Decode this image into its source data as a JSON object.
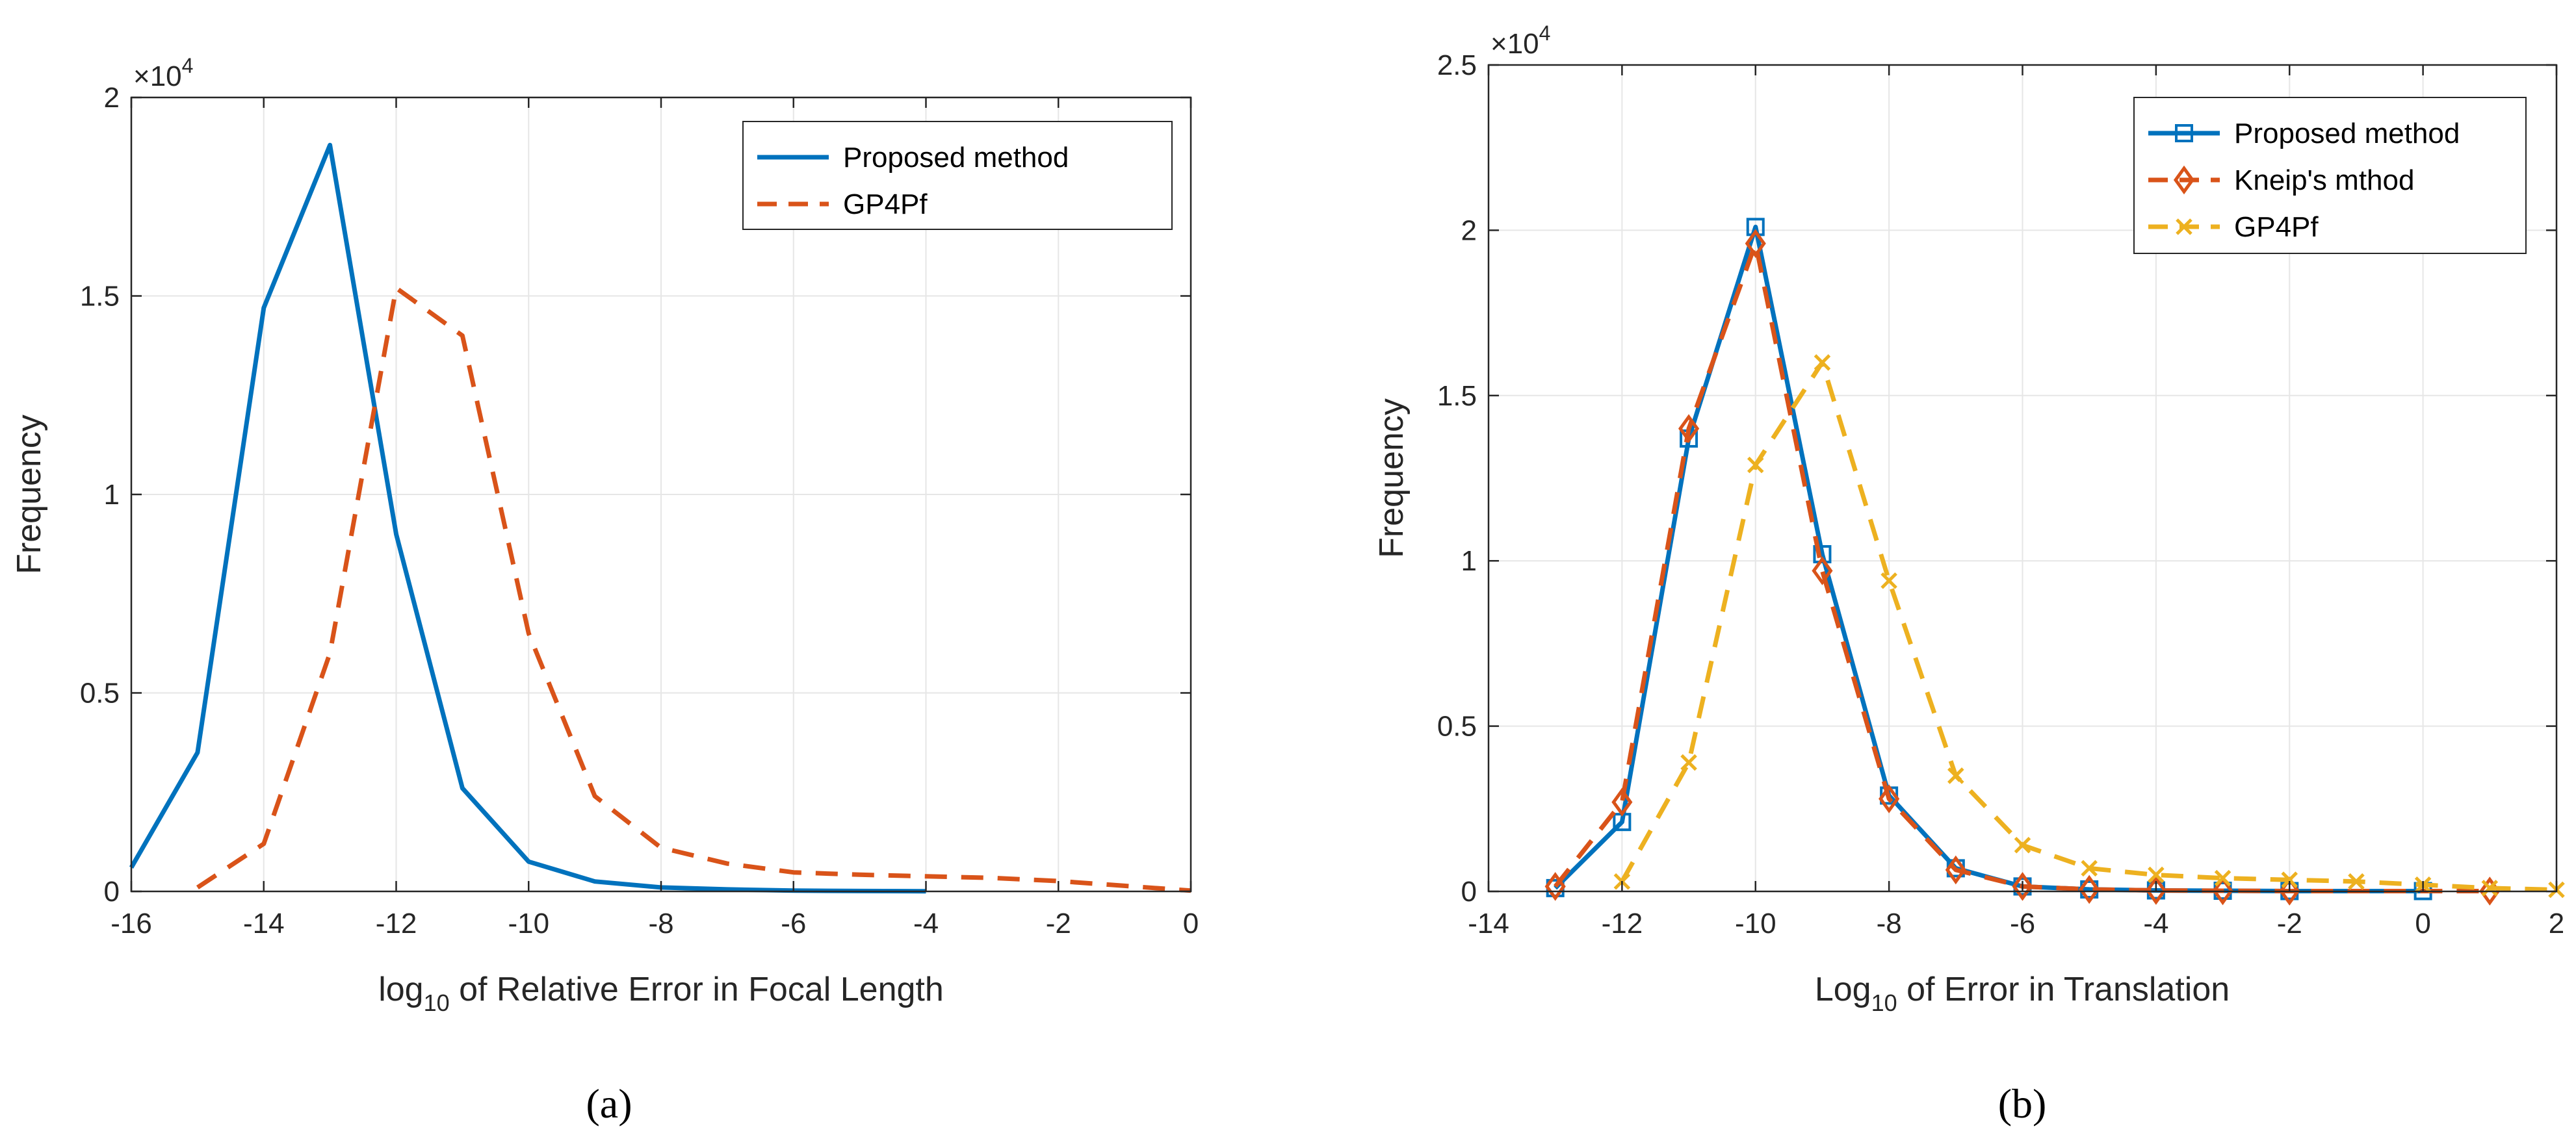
{
  "chart_data": [
    {
      "type": "line",
      "caption": "(a)",
      "xlabel_prefix": "log",
      "xlabel_sub": "10",
      "xlabel_rest": " of Relative Error in Focal Length",
      "ylabel": "Frequency",
      "y_multiplier_base": "×10",
      "y_multiplier_exp": "4",
      "xlim": [
        -16,
        0
      ],
      "ylim": [
        0,
        20000
      ],
      "xticks": [
        -16,
        -14,
        -12,
        -10,
        -8,
        -6,
        -4,
        -2,
        0
      ],
      "xtick_labels": [
        "-16",
        "-14",
        "-12",
        "-10",
        "-8",
        "-6",
        "-4",
        "-2",
        "0"
      ],
      "yticks": [
        0,
        5000,
        10000,
        15000,
        20000
      ],
      "ytick_labels": [
        "0",
        "0.5",
        "1",
        "1.5",
        "2"
      ],
      "grid": true,
      "legend_position": "top-right",
      "series": [
        {
          "name": "Proposed method",
          "color": "#0072BD",
          "style": "solid",
          "marker": "none",
          "x": [
            -16,
            -15,
            -14,
            -13,
            -12,
            -11,
            -10,
            -9,
            -8,
            -7,
            -6,
            -5,
            -4
          ],
          "y": [
            600,
            3500,
            14700,
            18800,
            9000,
            2600,
            750,
            250,
            100,
            50,
            20,
            10,
            5
          ]
        },
        {
          "name": "GP4Pf",
          "color": "#D95319",
          "style": "dashed",
          "marker": "none",
          "x": [
            -15,
            -14,
            -13,
            -12,
            -11,
            -10,
            -9,
            -8,
            -7,
            -6,
            -5,
            -4,
            -3,
            -2,
            -1,
            0
          ],
          "y": [
            100,
            1200,
            6000,
            15200,
            14000,
            6500,
            2400,
            1100,
            700,
            480,
            420,
            380,
            340,
            260,
            140,
            20
          ]
        }
      ]
    },
    {
      "type": "line",
      "caption": "(b)",
      "xlabel_prefix": "Log",
      "xlabel_sub": "10",
      "xlabel_rest": " of Error in Translation",
      "ylabel": "Frequency",
      "y_multiplier_base": "×10",
      "y_multiplier_exp": "4",
      "xlim": [
        -14,
        2
      ],
      "ylim": [
        0,
        25000
      ],
      "xticks": [
        -14,
        -12,
        -10,
        -8,
        -6,
        -4,
        -2,
        0,
        2
      ],
      "xtick_labels": [
        "-14",
        "-12",
        "-10",
        "-8",
        "-6",
        "-4",
        "-2",
        "0",
        "2"
      ],
      "yticks": [
        0,
        5000,
        10000,
        15000,
        20000,
        25000
      ],
      "ytick_labels": [
        "0",
        "0.5",
        "1",
        "1.5",
        "2",
        "2.5"
      ],
      "grid": true,
      "legend_position": "top-right",
      "series": [
        {
          "name": "Proposed method",
          "color": "#0072BD",
          "style": "solid",
          "marker": "square",
          "x": [
            -13,
            -12,
            -11,
            -10,
            -9,
            -8,
            -7,
            -6,
            -5,
            -4,
            -3,
            -2,
            0
          ],
          "y": [
            100,
            2100,
            13700,
            20100,
            10200,
            2900,
            700,
            150,
            60,
            30,
            20,
            10,
            10
          ]
        },
        {
          "name": "Kneip's mthod",
          "color": "#D95319",
          "style": "dashed",
          "marker": "diamond",
          "x": [
            -13,
            -12,
            -11,
            -10,
            -9,
            -8,
            -7,
            -6,
            -5,
            -4,
            -3,
            -2,
            1
          ],
          "y": [
            150,
            2700,
            14000,
            19600,
            9700,
            2800,
            650,
            150,
            60,
            30,
            20,
            10,
            10
          ]
        },
        {
          "name": "GP4Pf",
          "color": "#EDB120",
          "style": "dashed",
          "marker": "x",
          "x": [
            -12,
            -11,
            -10,
            -9,
            -8,
            -7,
            -6,
            -5,
            -4,
            -3,
            -2,
            -1,
            0,
            1,
            2
          ],
          "y": [
            300,
            3900,
            12900,
            16000,
            9400,
            3500,
            1400,
            700,
            500,
            400,
            350,
            300,
            200,
            100,
            50
          ]
        }
      ]
    }
  ]
}
